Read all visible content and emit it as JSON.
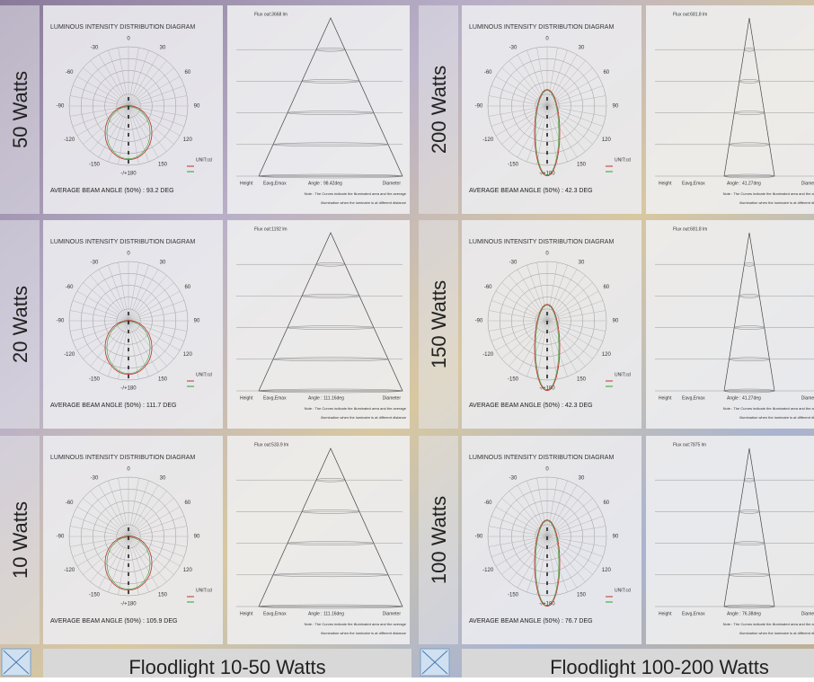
{
  "labels": {
    "title": "LUMINOUS INTENSITY DISTRIBUTION DIAGRAM",
    "height": "Height",
    "eavg": "Eavg,Emax",
    "diameter": "Diameter",
    "note1": "Note :  The Curves indicate the illuminated area and the average",
    "note2": "illumination when the luminaire is at different distance",
    "unit": "UNIT:cd",
    "polar": [
      "-/+180",
      "150",
      "120",
      "90",
      "60",
      "30",
      "0",
      "-30",
      "-60",
      "-90",
      "-120",
      "-150"
    ]
  },
  "panels": [
    {
      "watts": "50 Watts",
      "beam": "AVERAGE BEAM ANGLE (50%) : 93.2 DEG",
      "flux": "Flux out:3668 lm",
      "angle": "Angle : 98.42deg"
    },
    {
      "watts": "20 Watts",
      "beam": "AVERAGE BEAM ANGLE (50%) : 111.7 DEG",
      "flux": "Flux out:1192 lm",
      "angle": "Angle : 111.16deg"
    },
    {
      "watts": "10 Watts",
      "beam": "AVERAGE BEAM ANGLE (50%) : 105.9 DEG",
      "flux": "Flux out:533.9 lm",
      "angle": "Angle : 111.16deg"
    },
    {
      "watts": "200 Watts",
      "beam": "AVERAGE BEAM ANGLE (50%) : 42.3 DEG",
      "flux": "Flux out:681.8 lm",
      "angle": "Angle : 41.27deg"
    },
    {
      "watts": "150 Watts",
      "beam": "AVERAGE BEAM ANGLE (50%) : 42.3 DEG",
      "flux": "Flux out:681.8 lm",
      "angle": "Angle : 41.27deg"
    },
    {
      "watts": "100 Watts",
      "beam": "AVERAGE BEAM ANGLE (50%) : 76.7 DEG",
      "flux": "Flux out:7875 lm",
      "angle": "Angle : 76.38deg"
    }
  ],
  "captions": [
    "Floodlight 10-50 Watts",
    "Floodlight 100-200 Watts"
  ]
}
